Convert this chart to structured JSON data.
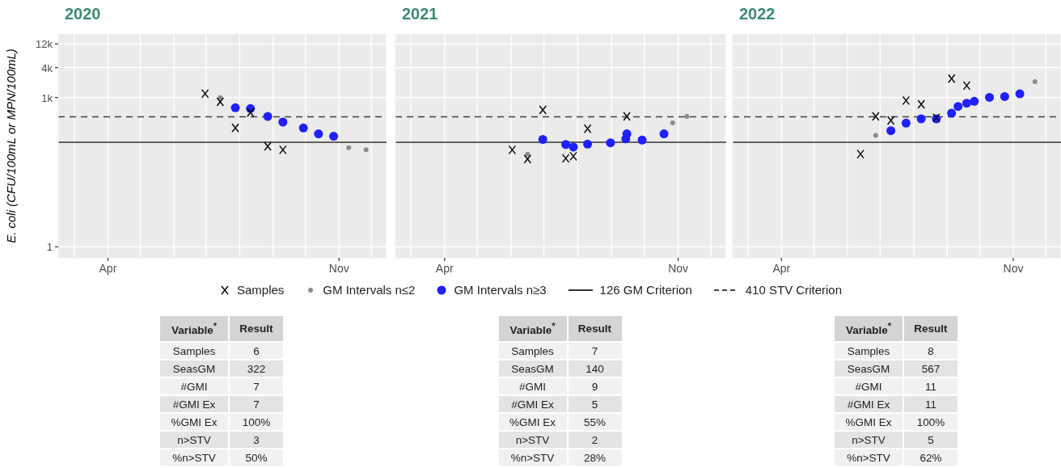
{
  "chart_data": [
    {
      "type": "scatter",
      "title": "2020",
      "ylabel": "E. coli (CFU/100mL or MPN/100mL)",
      "log": "y",
      "grid": true,
      "legend": "bottom",
      "xlim": [
        "2020-02-15",
        "2020-12-15"
      ],
      "xticks": [
        {
          "value": "2020-03-01",
          "label": null
        },
        {
          "value": "2020-04-01",
          "label": "Apr"
        },
        {
          "value": "2020-05-01",
          "label": null
        },
        {
          "value": "2020-06-01",
          "label": null
        },
        {
          "value": "2020-07-01",
          "label": null
        },
        {
          "value": "2020-08-01",
          "label": null
        },
        {
          "value": "2020-09-01",
          "label": null
        },
        {
          "value": "2020-10-01",
          "label": null
        },
        {
          "value": "2020-11-01",
          "label": "Nov"
        },
        {
          "value": "2020-12-01",
          "label": null
        }
      ],
      "ylim": [
        0.6,
        19000
      ],
      "yticks": [
        1,
        {
          "value": 1000,
          "label": "1k"
        },
        {
          "value": 4000,
          "label": "4k"
        },
        {
          "value": 12000,
          "label": "12k"
        }
      ],
      "series": [
        {
          "name": "Samples",
          "color": "#000000",
          "marker": "cross",
          "x": [
            "2020-06-30",
            "2020-07-14",
            "2020-07-28",
            "2020-08-11",
            "2020-08-27",
            "2020-09-10"
          ],
          "values": [
            1200,
            820,
            245,
            500,
            105,
            89
          ]
        },
        {
          "name": "GM Intervals n≤2",
          "color": "#8c8c8c",
          "marker": "circle",
          "x": [
            "2020-07-14",
            "2020-11-10",
            "2020-11-26"
          ],
          "values": [
            1000,
            98,
            89
          ]
        },
        {
          "name": "GM Intervals n≥3",
          "color": "#1f1fff",
          "marker": "circle",
          "x": [
            "2020-07-28",
            "2020-08-11",
            "2020-08-27",
            "2020-09-10",
            "2020-09-29",
            "2020-10-13",
            "2020-10-27"
          ],
          "values": [
            624,
            600,
            418,
            322,
            245,
            187,
            167
          ]
        }
      ],
      "ref_lines": [
        {
          "axis": "y",
          "value": 126,
          "label": "126 GM Criterion",
          "color": "#333333",
          "line_style": "solid"
        },
        {
          "axis": "y",
          "value": 410,
          "label": "410 STV Criterion",
          "color": "#404040",
          "line_style": "dashed"
        }
      ],
      "annotations": [
        "Variable$^{*}$",
        "Result",
        "Samples",
        "6",
        "SeasGM",
        "322",
        "#GMI",
        "7",
        "#GMI Ex",
        "7",
        "%GMI Ex",
        "100%",
        "n>STV",
        "3",
        "%n>STV",
        "50%"
      ]
    },
    {
      "type": "scatter",
      "title": "2021",
      "log": "y",
      "grid": true,
      "tick_labels": "x",
      "xlim": [
        "2021-02-15",
        "2021-12-15"
      ],
      "xticks": [
        {
          "value": "2021-03-01",
          "label": null
        },
        {
          "value": "2021-04-01",
          "label": "Apr"
        },
        {
          "value": "2021-05-01",
          "label": null
        },
        {
          "value": "2021-06-01",
          "label": null
        },
        {
          "value": "2021-07-01",
          "label": null
        },
        {
          "value": "2021-08-01",
          "label": null
        },
        {
          "value": "2021-09-01",
          "label": null
        },
        {
          "value": "2021-10-01",
          "label": null
        },
        {
          "value": "2021-11-01",
          "label": "Nov"
        },
        {
          "value": "2021-12-01",
          "label": null
        }
      ],
      "ylim": [
        0.6,
        19000
      ],
      "yticks": [
        1,
        1000,
        4000,
        12000
      ],
      "series": [
        {
          "color": "#000000",
          "marker": "cross",
          "x": [
            "2021-06-02",
            "2021-06-16",
            "2021-06-30",
            "2021-07-21",
            "2021-07-28",
            "2021-08-10",
            "2021-09-15"
          ],
          "values": [
            89,
            58,
            565,
            60,
            66,
            236,
            418
          ]
        },
        {
          "color": "#8c8c8c",
          "marker": "circle",
          "x": [
            "2021-06-16",
            "2021-10-27",
            "2021-11-09"
          ],
          "values": [
            73,
            310,
            418
          ]
        },
        {
          "color": "#1f1fff",
          "marker": "circle",
          "x": [
            "2021-06-30",
            "2021-07-21",
            "2021-07-28",
            "2021-08-10",
            "2021-08-31",
            "2021-09-14",
            "2021-09-15",
            "2021-09-29",
            "2021-10-19"
          ],
          "values": [
            144,
            114,
            101,
            116,
            123,
            148,
            187,
            140,
            187
          ]
        }
      ],
      "ref_lines": [
        {
          "axis": "y",
          "value": 126,
          "color": "#333333",
          "line_style": "solid"
        },
        {
          "axis": "y",
          "value": 410,
          "color": "#404040",
          "line_style": "dashed"
        }
      ],
      "annotations": [
        "Variable$^{*}$",
        "Result",
        "Samples",
        "7",
        "SeasGM",
        "140",
        "#GMI",
        "9",
        "#GMI Ex",
        "5",
        "%GMI Ex",
        "55%",
        "n>STV",
        "2",
        "%n>STV",
        "28%"
      ]
    },
    {
      "type": "scatter",
      "title": "2022",
      "log": "y",
      "grid": true,
      "tick_labels": "x",
      "xlim": [
        "2022-02-15",
        "2022-12-15"
      ],
      "xticks": [
        {
          "value": "2022-03-01",
          "label": null
        },
        {
          "value": "2022-04-01",
          "label": "Apr"
        },
        {
          "value": "2022-05-01",
          "label": null
        },
        {
          "value": "2022-06-01",
          "label": null
        },
        {
          "value": "2022-07-01",
          "label": null
        },
        {
          "value": "2022-08-01",
          "label": null
        },
        {
          "value": "2022-09-01",
          "label": null
        },
        {
          "value": "2022-10-01",
          "label": null
        },
        {
          "value": "2022-11-01",
          "label": "Nov"
        },
        {
          "value": "2022-12-01",
          "label": null
        }
      ],
      "ylim": [
        0.6,
        19000
      ],
      "yticks": [
        1,
        1000,
        4000,
        12000
      ],
      "series": [
        {
          "color": "#000000",
          "marker": "cross",
          "x": [
            "2022-06-13",
            "2022-06-27",
            "2022-07-11",
            "2022-07-25",
            "2022-08-08",
            "2022-08-22",
            "2022-09-05",
            "2022-09-19"
          ],
          "values": [
            73,
            418,
            347,
            873,
            733,
            393,
            2400,
            1740
          ]
        },
        {
          "color": "#8c8c8c",
          "marker": "circle",
          "x": [
            "2022-06-27",
            "2022-11-21"
          ],
          "values": [
            173,
            2090
          ]
        },
        {
          "color": "#1f1fff",
          "marker": "circle",
          "x": [
            "2022-07-11",
            "2022-07-25",
            "2022-08-08",
            "2022-08-22",
            "2022-09-05",
            "2022-09-11",
            "2022-09-19",
            "2022-09-26",
            "2022-10-10",
            "2022-10-24",
            "2022-11-07"
          ],
          "values": [
            216,
            306,
            374,
            374,
            486,
            663,
            770,
            840,
            1010,
            1050,
            1190
          ]
        }
      ],
      "ref_lines": [
        {
          "axis": "y",
          "value": 126,
          "color": "#333333",
          "line_style": "solid"
        },
        {
          "axis": "y",
          "value": 410,
          "color": "#404040",
          "line_style": "dashed"
        }
      ],
      "annotations": [
        "Variable$^{*}$",
        "Result",
        "Samples",
        "8",
        "SeasGM",
        "567",
        "#GMI",
        "11",
        "#GMI Ex",
        "11",
        "%GMI Ex",
        "100%",
        "n>STV",
        "5",
        "%n>STV",
        "62%"
      ]
    }
  ]
}
